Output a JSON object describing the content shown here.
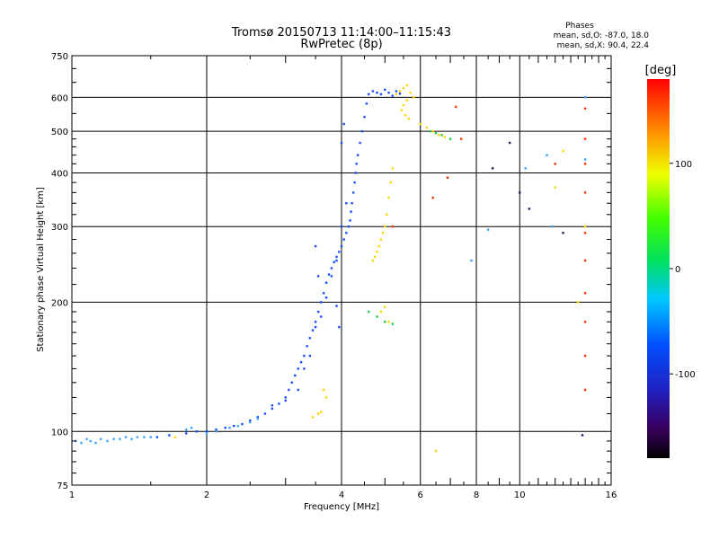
{
  "header": {
    "title_line1": "Tromsø 20150713 11:14:00–11:15:43",
    "title_line2": "RwPretec (8p)",
    "phase_title": "Phases",
    "phase_line1": "mean, sd,O: -87.0, 18.0",
    "phase_line2": "mean, sd,X:  90.4, 22.4"
  },
  "colorbar": {
    "label": "[deg]",
    "ticks": [
      "100",
      "0",
      "-100"
    ],
    "tick_values": [
      100,
      0,
      -100
    ],
    "range": [
      -180,
      180
    ],
    "colormap": "rainbow (black-purple-blue-cyan-green-yellow-red)"
  },
  "chart_data": {
    "type": "scatter",
    "title": "Tromsø 20150713 11:14:00–11:15:43",
    "subtitle": "RwPretec (8p)",
    "xlabel": "Frequency [MHz]",
    "ylabel": "Stationary phase Virtual Height [km]",
    "x_scale": "log",
    "y_scale": "log",
    "xlim": [
      1,
      16
    ],
    "ylim": [
      75,
      750
    ],
    "x_ticks": [
      1,
      2,
      4,
      6,
      8,
      10,
      16
    ],
    "x_tick_labels": [
      "1",
      "2",
      "4",
      "6",
      "8",
      "10",
      "16"
    ],
    "y_ticks": [
      75,
      100,
      200,
      300,
      400,
      500,
      600,
      750
    ],
    "y_tick_labels": [
      "75",
      "100",
      "200",
      "300",
      "400",
      "500",
      "600",
      "750"
    ],
    "grid": true,
    "color_encodes": "phase [deg]",
    "series": [
      {
        "color": "#1a4dff",
        "points": [
          [
            1.55,
            97
          ],
          [
            1.65,
            98
          ],
          [
            1.8,
            99
          ],
          [
            1.9,
            100
          ],
          [
            2.0,
            100
          ],
          [
            2.1,
            101
          ],
          [
            2.2,
            102
          ],
          [
            2.3,
            103
          ],
          [
            2.4,
            104
          ],
          [
            2.5,
            106
          ],
          [
            2.6,
            108
          ],
          [
            2.7,
            110
          ],
          [
            2.8,
            113
          ],
          [
            2.9,
            116
          ],
          [
            3.0,
            120
          ],
          [
            3.05,
            125
          ],
          [
            3.1,
            130
          ],
          [
            3.15,
            135
          ],
          [
            3.2,
            140
          ],
          [
            3.25,
            145
          ],
          [
            3.3,
            150
          ],
          [
            3.35,
            158
          ],
          [
            3.4,
            165
          ],
          [
            3.45,
            172
          ],
          [
            3.5,
            180
          ],
          [
            3.55,
            190
          ],
          [
            3.6,
            200
          ],
          [
            3.65,
            210
          ],
          [
            3.7,
            222
          ],
          [
            3.75,
            232
          ],
          [
            3.8,
            240
          ],
          [
            3.85,
            248
          ],
          [
            3.9,
            255
          ],
          [
            3.95,
            262
          ],
          [
            4.0,
            270
          ],
          [
            4.05,
            280
          ],
          [
            4.1,
            290
          ],
          [
            4.15,
            300
          ],
          [
            4.18,
            310
          ],
          [
            4.2,
            325
          ],
          [
            4.22,
            340
          ],
          [
            4.25,
            360
          ],
          [
            4.28,
            380
          ],
          [
            4.3,
            400
          ],
          [
            4.32,
            420
          ],
          [
            4.35,
            440
          ],
          [
            4.4,
            470
          ],
          [
            4.45,
            500
          ],
          [
            4.5,
            540
          ],
          [
            4.55,
            580
          ],
          [
            4.6,
            610
          ],
          [
            4.7,
            620
          ],
          [
            4.8,
            615
          ],
          [
            4.9,
            610
          ],
          [
            5.0,
            625
          ],
          [
            5.1,
            615
          ],
          [
            5.2,
            605
          ],
          [
            5.3,
            620
          ],
          [
            5.4,
            612
          ],
          [
            3.3,
            140
          ],
          [
            3.4,
            150
          ],
          [
            3.5,
            175
          ],
          [
            3.6,
            185
          ],
          [
            3.7,
            205
          ],
          [
            3.8,
            230
          ],
          [
            3.9,
            250
          ],
          [
            4.0,
            300
          ],
          [
            4.1,
            340
          ],
          [
            3.5,
            270
          ],
          [
            3.55,
            230
          ],
          [
            4.0,
            470
          ],
          [
            4.05,
            520
          ],
          [
            3.9,
            196
          ],
          [
            3.95,
            175
          ],
          [
            3.2,
            125
          ],
          [
            3.0,
            118
          ],
          [
            2.8,
            115
          ]
        ]
      },
      {
        "color": "#3fa3ff",
        "points": [
          [
            1.02,
            95
          ],
          [
            1.05,
            94
          ],
          [
            1.08,
            96
          ],
          [
            1.1,
            95
          ],
          [
            1.13,
            94
          ],
          [
            1.16,
            96
          ],
          [
            1.2,
            95
          ],
          [
            1.24,
            96
          ],
          [
            1.28,
            96
          ],
          [
            1.32,
            97
          ],
          [
            1.36,
            96
          ],
          [
            1.4,
            97
          ],
          [
            1.45,
            97
          ],
          [
            1.5,
            97
          ],
          [
            1.8,
            101
          ],
          [
            1.85,
            102
          ],
          [
            2.0,
            99
          ],
          [
            2.1,
            100
          ],
          [
            2.25,
            102
          ],
          [
            2.35,
            103
          ],
          [
            2.5,
            105
          ],
          [
            2.6,
            107
          ],
          [
            7.8,
            250
          ],
          [
            8.5,
            295
          ],
          [
            10.3,
            410
          ],
          [
            11.5,
            440
          ],
          [
            11.8,
            300
          ],
          [
            14.0,
            430
          ],
          [
            14.0,
            600
          ]
        ]
      },
      {
        "color": "#ffd700",
        "points": [
          [
            4.7,
            250
          ],
          [
            4.75,
            255
          ],
          [
            4.8,
            262
          ],
          [
            4.85,
            270
          ],
          [
            4.9,
            280
          ],
          [
            4.95,
            290
          ],
          [
            5.0,
            300
          ],
          [
            5.05,
            320
          ],
          [
            5.1,
            350
          ],
          [
            5.15,
            380
          ],
          [
            5.2,
            410
          ],
          [
            5.3,
            610
          ],
          [
            5.4,
            620
          ],
          [
            5.5,
            630
          ],
          [
            5.6,
            640
          ],
          [
            5.7,
            615
          ],
          [
            5.8,
            600
          ],
          [
            5.6,
            590
          ],
          [
            5.5,
            575
          ],
          [
            5.45,
            560
          ],
          [
            5.55,
            545
          ],
          [
            5.65,
            535
          ],
          [
            6.0,
            520
          ],
          [
            6.2,
            510
          ],
          [
            6.4,
            500
          ],
          [
            6.6,
            490
          ],
          [
            6.8,
            485
          ],
          [
            3.55,
            110
          ],
          [
            3.6,
            111
          ],
          [
            3.45,
            108
          ],
          [
            3.7,
            120
          ],
          [
            3.65,
            125
          ],
          [
            12.0,
            370
          ],
          [
            12.5,
            450
          ],
          [
            14.0,
            300
          ],
          [
            13.5,
            200
          ],
          [
            6.5,
            90
          ],
          [
            1.7,
            97
          ],
          [
            5.0,
            195
          ],
          [
            5.1,
            180
          ],
          [
            4.9,
            190
          ]
        ]
      },
      {
        "color": "#ff3300",
        "points": [
          [
            6.4,
            350
          ],
          [
            7.2,
            570
          ],
          [
            7.4,
            480
          ],
          [
            6.9,
            390
          ],
          [
            12.0,
            420
          ],
          [
            14.0,
            565
          ],
          [
            14.0,
            480
          ],
          [
            14.0,
            420
          ],
          [
            14.0,
            360
          ],
          [
            14.0,
            290
          ],
          [
            14.0,
            250
          ],
          [
            14.0,
            210
          ],
          [
            14.0,
            180
          ],
          [
            14.0,
            150
          ],
          [
            14.0,
            125
          ],
          [
            5.2,
            300
          ]
        ]
      },
      {
        "color": "#22cc44",
        "points": [
          [
            4.6,
            190
          ],
          [
            4.8,
            185
          ],
          [
            5.0,
            180
          ],
          [
            5.2,
            178
          ],
          [
            6.3,
            500
          ],
          [
            6.5,
            495
          ],
          [
            6.7,
            490
          ],
          [
            7.0,
            480
          ]
        ]
      },
      {
        "color": "#202060",
        "points": [
          [
            9.5,
            470
          ],
          [
            10.0,
            360
          ],
          [
            10.5,
            330
          ],
          [
            8.7,
            410
          ],
          [
            12.5,
            290
          ],
          [
            13.8,
            98
          ]
        ]
      }
    ]
  }
}
